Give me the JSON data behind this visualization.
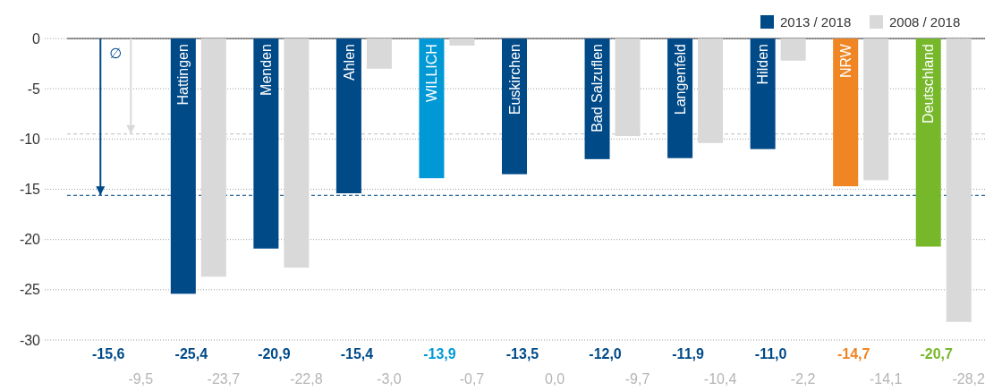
{
  "chart_data": {
    "type": "bar",
    "categories": [
      "∅",
      "Hattingen",
      "Menden",
      "Ahlen",
      "WILLICH",
      "Euskirchen",
      "Bad Salzuflen",
      "Langenfeld",
      "Hilden",
      "NRW",
      "Deutschland"
    ],
    "series": [
      {
        "name": "2013 / 2018",
        "color": "#004a88",
        "colors": [
          "#004a88",
          "#004a88",
          "#004a88",
          "#004a88",
          "#0099d6",
          "#004a88",
          "#004a88",
          "#004a88",
          "#004a88",
          "#ef8523",
          "#76b82a"
        ],
        "values": [
          -15.6,
          -25.4,
          -20.9,
          -15.4,
          -13.9,
          -13.5,
          -12.0,
          -11.9,
          -11.0,
          -14.7,
          -20.7
        ],
        "value_labels": [
          "-15,6",
          "-25,4",
          "-20,9",
          "-15,4",
          "-13,9",
          "-13,5",
          "-12,0",
          "-11,9",
          "-11,0",
          "-14,7",
          "-20,7"
        ]
      },
      {
        "name": "2008 / 2018",
        "color": "#d9d9d9",
        "values": [
          -9.5,
          -23.7,
          -22.8,
          -3.0,
          -0.7,
          0.0,
          -9.7,
          -10.4,
          -2.2,
          -14.1,
          -28.2
        ],
        "value_labels": [
          "-9,5",
          "-23,7",
          "-22,8",
          "-3,0",
          "-0,7",
          "0,0",
          "-9,7",
          "-10,4",
          "-2,2",
          "-14,1",
          "-28,2"
        ]
      }
    ],
    "ylim": [
      -30,
      2.5
    ],
    "yticks": [
      0,
      -5,
      -10,
      -15,
      -20,
      -25,
      -30
    ],
    "grid": "y",
    "legend": "top right",
    "ref_lines": [
      {
        "axis": "y",
        "value": -15.6,
        "color": "#004a88",
        "line_style": "dashed"
      },
      {
        "axis": "y",
        "value": -9.5,
        "color": "#bdbdbd",
        "line_style": "dashed"
      }
    ]
  }
}
